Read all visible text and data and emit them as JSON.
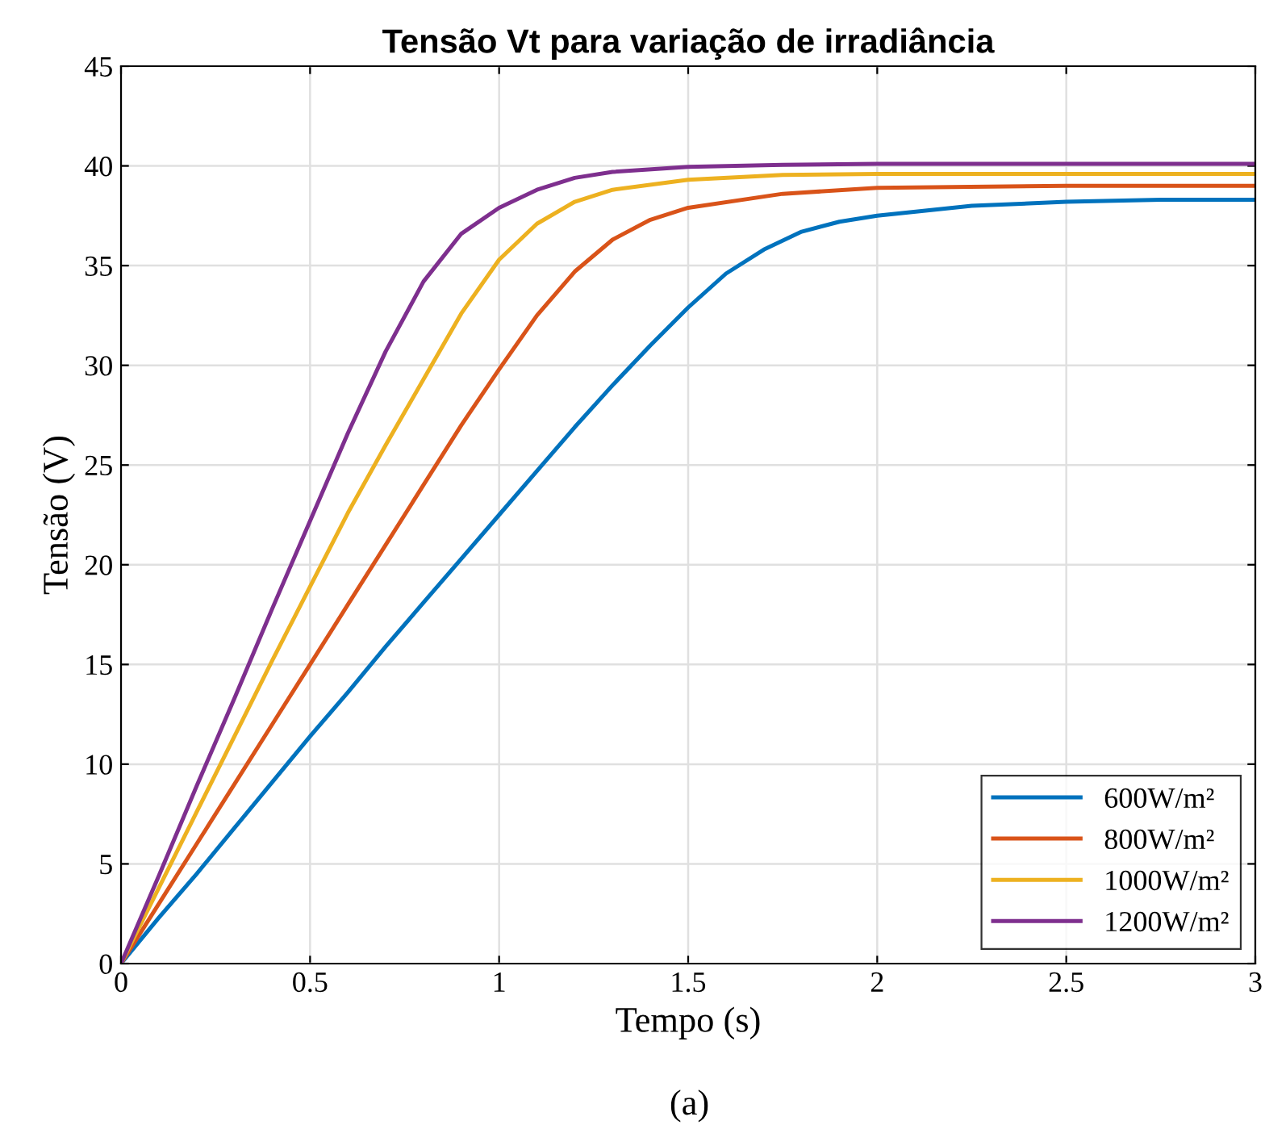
{
  "chart_data": {
    "type": "line",
    "title": "Tensão Vt para variação de irradiância",
    "xlabel": "Tempo (s)",
    "ylabel": "Tensão (V)",
    "annotations": [
      "(a)"
    ],
    "xlim": [
      0,
      3
    ],
    "ylim": [
      0,
      45
    ],
    "xticks": [
      0,
      0.5,
      1,
      1.5,
      2,
      2.5,
      3
    ],
    "yticks": [
      0,
      5,
      10,
      15,
      20,
      25,
      30,
      35,
      40,
      45
    ],
    "grid": true,
    "legend": "bottom right",
    "line_style": "solid",
    "marker": "none",
    "series": [
      {
        "name": "600W/m²",
        "color": "#0072bd",
        "x": [
          0,
          0.1,
          0.2,
          0.3,
          0.4,
          0.5,
          0.6,
          0.7,
          0.8,
          0.9,
          1.0,
          1.1,
          1.2,
          1.3,
          1.4,
          1.5,
          1.6,
          1.7,
          1.8,
          1.9,
          2.0,
          2.25,
          2.5,
          2.75,
          3
        ],
        "values": [
          0,
          2.3,
          4.5,
          6.8,
          9.1,
          11.4,
          13.6,
          15.9,
          18.1,
          20.3,
          22.5,
          24.7,
          26.9,
          29.0,
          31.0,
          32.9,
          34.6,
          35.8,
          36.7,
          37.2,
          37.5,
          38.0,
          38.2,
          38.3,
          38.3
        ]
      },
      {
        "name": "800W/m²",
        "color": "#d95319",
        "x": [
          0,
          0.1,
          0.2,
          0.3,
          0.4,
          0.5,
          0.6,
          0.7,
          0.8,
          0.9,
          1.0,
          1.1,
          1.2,
          1.3,
          1.4,
          1.5,
          1.75,
          2.0,
          2.5,
          3
        ],
        "values": [
          0,
          3.0,
          6.0,
          9.0,
          12.0,
          15.0,
          18.0,
          21.0,
          24.0,
          27.0,
          29.8,
          32.5,
          34.7,
          36.3,
          37.3,
          37.9,
          38.6,
          38.9,
          39.0,
          39.0
        ]
      },
      {
        "name": "1000W/m²",
        "color": "#edb120",
        "x": [
          0,
          0.1,
          0.2,
          0.3,
          0.4,
          0.5,
          0.6,
          0.7,
          0.8,
          0.9,
          1.0,
          1.1,
          1.2,
          1.3,
          1.5,
          1.75,
          2.0,
          3
        ],
        "values": [
          0,
          3.8,
          7.6,
          11.4,
          15.2,
          18.9,
          22.6,
          26.0,
          29.3,
          32.6,
          35.3,
          37.1,
          38.2,
          38.8,
          39.3,
          39.55,
          39.6,
          39.6
        ]
      },
      {
        "name": "1200W/m²",
        "color": "#7e2f8e",
        "x": [
          0,
          0.1,
          0.2,
          0.3,
          0.4,
          0.5,
          0.6,
          0.7,
          0.8,
          0.9,
          1.0,
          1.1,
          1.2,
          1.3,
          1.5,
          1.75,
          2.0,
          3
        ],
        "values": [
          0,
          4.4,
          8.9,
          13.3,
          17.8,
          22.2,
          26.6,
          30.7,
          34.2,
          36.6,
          37.9,
          38.8,
          39.4,
          39.7,
          39.95,
          40.05,
          40.1,
          40.1
        ]
      }
    ]
  }
}
